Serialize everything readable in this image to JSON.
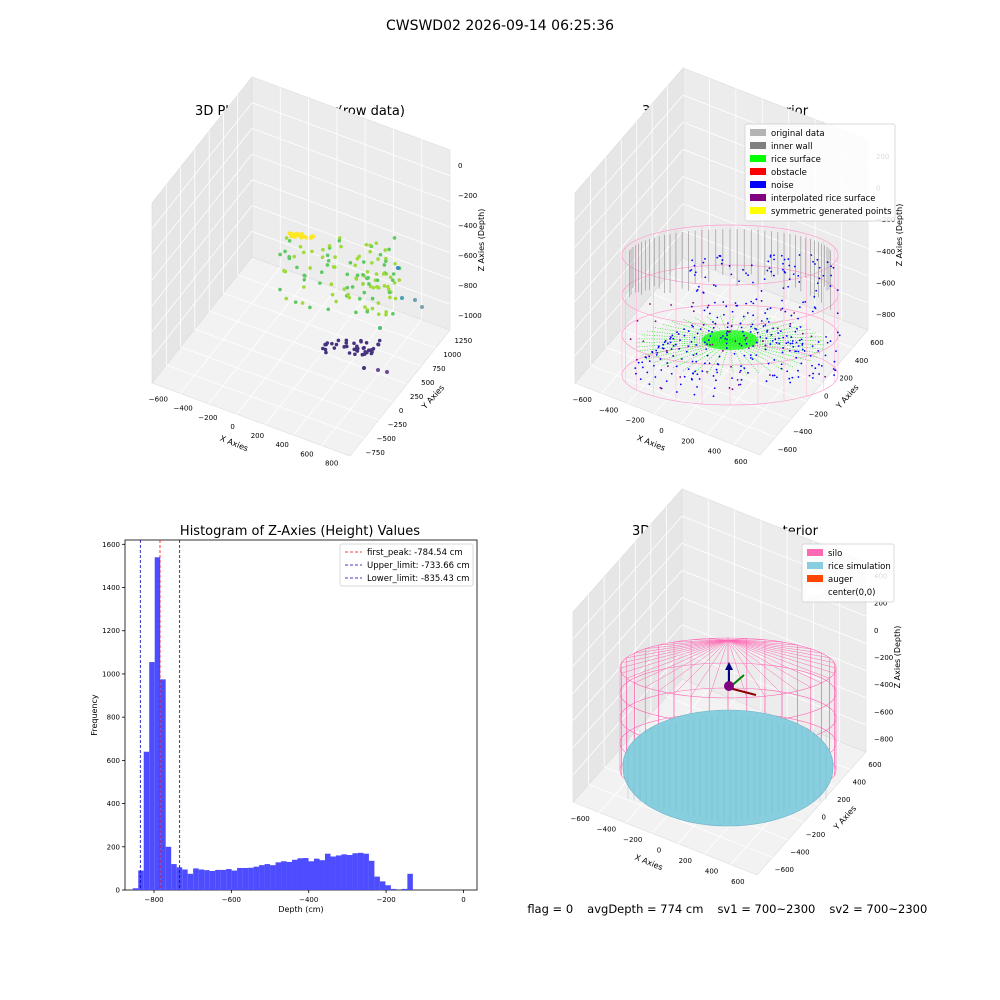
{
  "suptitle": "CWSWD02 2026-09-14 06:25:36",
  "status": {
    "flag": "flag = 0",
    "avg_depth": "avgDepth = 774 cm",
    "sv1": "sv1 = 700~2300",
    "sv2": "sv2 = 700~2300"
  },
  "colors": {
    "hist_bar": "#4d4dff",
    "peak_line": "#ff0000",
    "limit_line": "#0000aa",
    "silo": "#ff69b4",
    "rice_sim": "#87cedf",
    "auger": "#ff4500",
    "rice_surface": "#00ff00",
    "noise": "#0000ff",
    "inner_wall": "#808080"
  },
  "chart_data": [
    {
      "type": "scatter",
      "title": "3D Plot of Silo Interior(row data)",
      "xlabel": "X Axies",
      "ylabel": "Y Axies",
      "zlabel": "Z Axies (Depth)",
      "x_ticks": [
        "−600",
        "−400",
        "−200",
        "0",
        "200",
        "400",
        "600",
        "800"
      ],
      "y_ticks": [
        "−750",
        "−500",
        "−250",
        "0",
        "250",
        "500",
        "750",
        "1000",
        "1250"
      ],
      "z_ticks": [
        "0",
        "−200",
        "−400",
        "−600",
        "−800",
        "−1000"
      ],
      "colormap": "viridis"
    },
    {
      "type": "scatter",
      "title": "3D classify of Silo Interior",
      "xlabel": "X Axies",
      "ylabel": "Y Axies",
      "zlabel": "Z Axies (Depth)",
      "x_ticks": [
        "−600",
        "−400",
        "−200",
        "0",
        "200",
        "400",
        "600"
      ],
      "y_ticks": [
        "−600",
        "−400",
        "−200",
        "0",
        "200",
        "400",
        "600"
      ],
      "z_ticks": [
        "200",
        "0",
        "−200",
        "−400",
        "−600",
        "−800"
      ],
      "legend": [
        {
          "label": "original data",
          "color": "#b3b3b3"
        },
        {
          "label": "inner wall",
          "color": "#808080"
        },
        {
          "label": "rice surface",
          "color": "#00ff00"
        },
        {
          "label": "obstacle",
          "color": "#ff0000"
        },
        {
          "label": "noise",
          "color": "#0000ff"
        },
        {
          "label": "interpolated rice surface",
          "color": "#800080"
        },
        {
          "label": "symmetric generated points",
          "color": "#ffff00"
        }
      ],
      "legend_position": "top-right"
    },
    {
      "type": "bar",
      "title": "Histogram of Z-Axies (Height) Values",
      "xlabel": "Depth (cm)",
      "ylabel": "Frequency",
      "xlim": [
        -875,
        35
      ],
      "ylim": [
        0,
        1620
      ],
      "x_ticks": [
        -800,
        -600,
        -400,
        -200,
        0
      ],
      "x_tick_labels": [
        "−800",
        "−600",
        "−400",
        "−200",
        "0"
      ],
      "y_ticks": [
        0,
        200,
        400,
        600,
        800,
        1000,
        1200,
        1400,
        1600
      ],
      "bin_start": -855,
      "bin_width": 14.2,
      "values": [
        8,
        90,
        640,
        1055,
        1540,
        975,
        200,
        120,
        105,
        95,
        75,
        100,
        95,
        92,
        88,
        93,
        93,
        97,
        90,
        102,
        102,
        103,
        108,
        115,
        120,
        115,
        128,
        133,
        130,
        140,
        147,
        148,
        133,
        145,
        138,
        168,
        155,
        160,
        165,
        162,
        170,
        172,
        168,
        135,
        62,
        40,
        22,
        5,
        0,
        5,
        75
      ],
      "vlines": [
        {
          "label": "first_peak: -784.54 cm",
          "x": -784.54,
          "color": "#ff0000"
        },
        {
          "label": "Upper_limit: -733.66 cm",
          "x": -733.66,
          "color": "#0000aa"
        },
        {
          "label": "Lower_limit: -835.43 cm",
          "x": -835.43,
          "color": "#0000aa"
        }
      ],
      "legend_position": "top-right"
    },
    {
      "type": "scatter",
      "title": "3D simulation of Silo Interior",
      "xlabel": "X Axies",
      "ylabel": "Y Axies",
      "zlabel": "Z Axies (Depth)",
      "x_ticks": [
        "−600",
        "−400",
        "−200",
        "0",
        "200",
        "400",
        "600"
      ],
      "y_ticks": [
        "−600",
        "−400",
        "−200",
        "0",
        "200",
        "400",
        "600"
      ],
      "z_ticks": [
        "400",
        "200",
        "0",
        "−200",
        "−400",
        "−600",
        "−800"
      ],
      "legend": [
        {
          "label": "silo",
          "color": "#ff69b4"
        },
        {
          "label": "rice simulation",
          "color": "#87cedf"
        },
        {
          "label": "auger",
          "color": "#ff4500"
        },
        {
          "label": "center(0,0)",
          "color": "#ffffff"
        }
      ],
      "legend_position": "top-right"
    }
  ]
}
